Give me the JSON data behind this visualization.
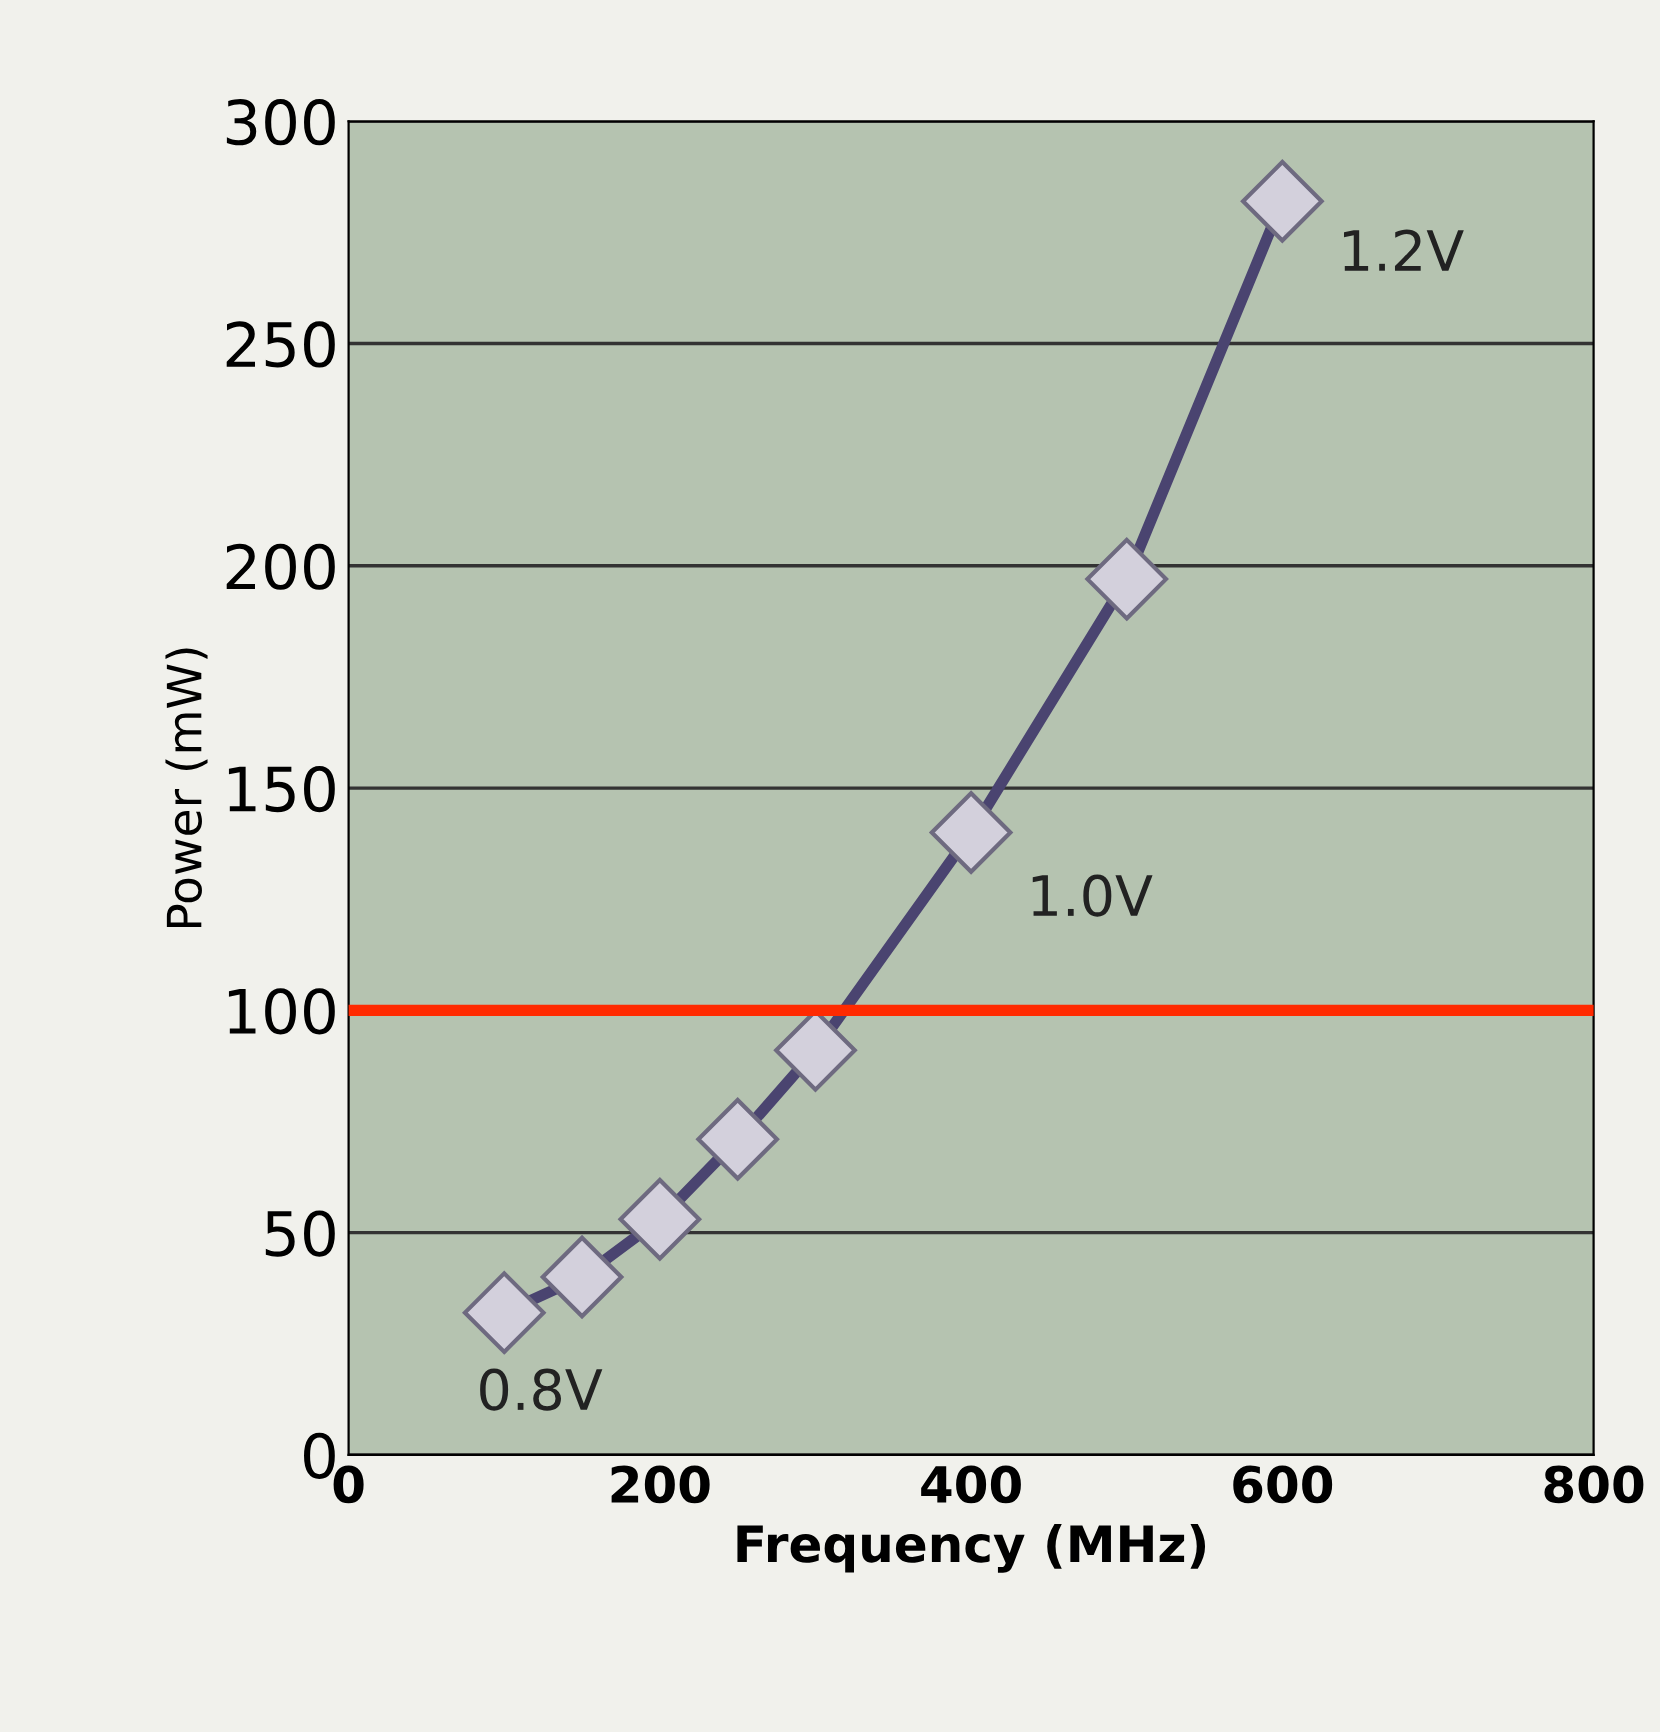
{
  "chart_data": {
    "type": "line",
    "x": [
      100,
      150,
      200,
      250,
      300,
      400,
      500,
      600
    ],
    "series": [
      {
        "color": "#4a4470",
        "values": [
          32,
          40,
          53,
          71,
          91,
          140,
          197,
          282
        ]
      }
    ],
    "xlabel": "Frequency (MHz)",
    "ylabel": "Power (mW)",
    "xlim": [
      0,
      800
    ],
    "xticks": [
      0,
      200,
      400,
      600,
      800
    ],
    "ylim": [
      0,
      300
    ],
    "yticks": [
      0,
      50,
      100,
      150,
      200,
      250,
      300
    ],
    "grid": "y",
    "marker": "diamond",
    "line_style": "solid",
    "ref_lines": [
      {
        "axis": "y",
        "value": 100,
        "color": "#ff2a00"
      }
    ],
    "annotations": [
      {
        "text": "0.8V",
        "x": 100,
        "y": 32
      },
      {
        "text": "1.0V",
        "x": 400,
        "y": 140
      },
      {
        "text": "1.2V",
        "x": 600,
        "y": 282
      }
    ]
  }
}
